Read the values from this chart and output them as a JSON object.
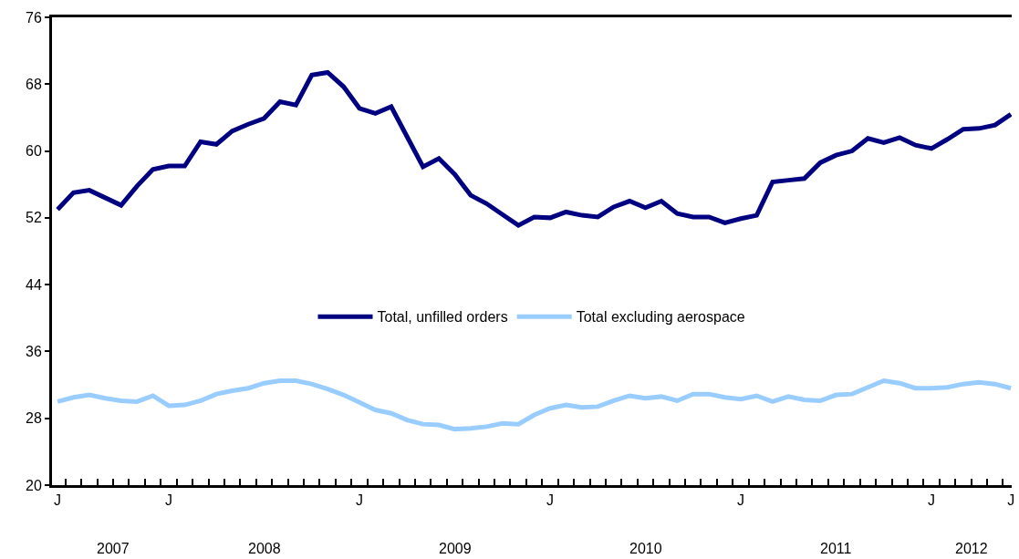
{
  "chart_data": {
    "type": "line",
    "categories": [
      "J",
      null,
      null,
      null,
      null,
      null,
      null,
      "J",
      null,
      null,
      null,
      null,
      null,
      null,
      null,
      null,
      null,
      null,
      null,
      "J",
      null,
      null,
      null,
      null,
      null,
      null,
      null,
      null,
      null,
      null,
      null,
      "J",
      null,
      null,
      null,
      null,
      null,
      null,
      null,
      null,
      null,
      null,
      null,
      "J",
      null,
      null,
      null,
      null,
      null,
      null,
      null,
      null,
      null,
      null,
      null,
      "J",
      null,
      null,
      null,
      null,
      "J"
    ],
    "series": [
      {
        "name": "Total, unfilled orders",
        "color": "#000080",
        "values": [
          53.0,
          55.0,
          55.3,
          54.4,
          53.5,
          55.8,
          57.8,
          58.2,
          58.2,
          61.1,
          60.8,
          62.4,
          63.2,
          63.9,
          65.9,
          65.5,
          69.1,
          69.4,
          67.7,
          65.1,
          64.5,
          65.3,
          61.7,
          58.1,
          59.1,
          57.2,
          54.7,
          53.7,
          52.4,
          51.1,
          52.1,
          52.0,
          52.7,
          52.3,
          52.1,
          53.3,
          54.0,
          53.2,
          54.0,
          52.5,
          52.1,
          52.1,
          51.4,
          51.9,
          52.3,
          56.3,
          56.5,
          56.7,
          58.6,
          59.5,
          60.0,
          61.5,
          61.0,
          61.6,
          60.7,
          60.3,
          61.4,
          62.6,
          62.7,
          63.1,
          64.4
        ]
      },
      {
        "name": "Total excluding aerospace",
        "color": "#99ccff",
        "values": [
          30.0,
          30.5,
          30.8,
          30.4,
          30.1,
          30.0,
          30.7,
          29.5,
          29.6,
          30.1,
          30.9,
          31.3,
          31.6,
          32.2,
          32.5,
          32.5,
          32.1,
          31.5,
          30.8,
          29.9,
          29.0,
          28.6,
          27.8,
          27.3,
          27.2,
          26.7,
          26.8,
          27.0,
          27.4,
          27.3,
          28.4,
          29.2,
          29.6,
          29.3,
          29.4,
          30.1,
          30.7,
          30.4,
          30.6,
          30.1,
          30.9,
          30.9,
          30.5,
          30.3,
          30.7,
          30.0,
          30.6,
          30.2,
          30.1,
          30.8,
          30.9,
          31.7,
          32.5,
          32.2,
          31.6,
          31.6,
          31.7,
          32.1,
          32.3,
          32.1,
          31.6
        ]
      }
    ],
    "ylim": [
      20,
      76
    ],
    "yticks": [
      20,
      28,
      36,
      44,
      52,
      60,
      68,
      76
    ],
    "annotations": [
      "2007",
      "2008",
      "2009",
      "2010",
      "2011",
      "2012"
    ],
    "grid": false,
    "legend": "center",
    "marker": "none",
    "line_style": "solid"
  }
}
